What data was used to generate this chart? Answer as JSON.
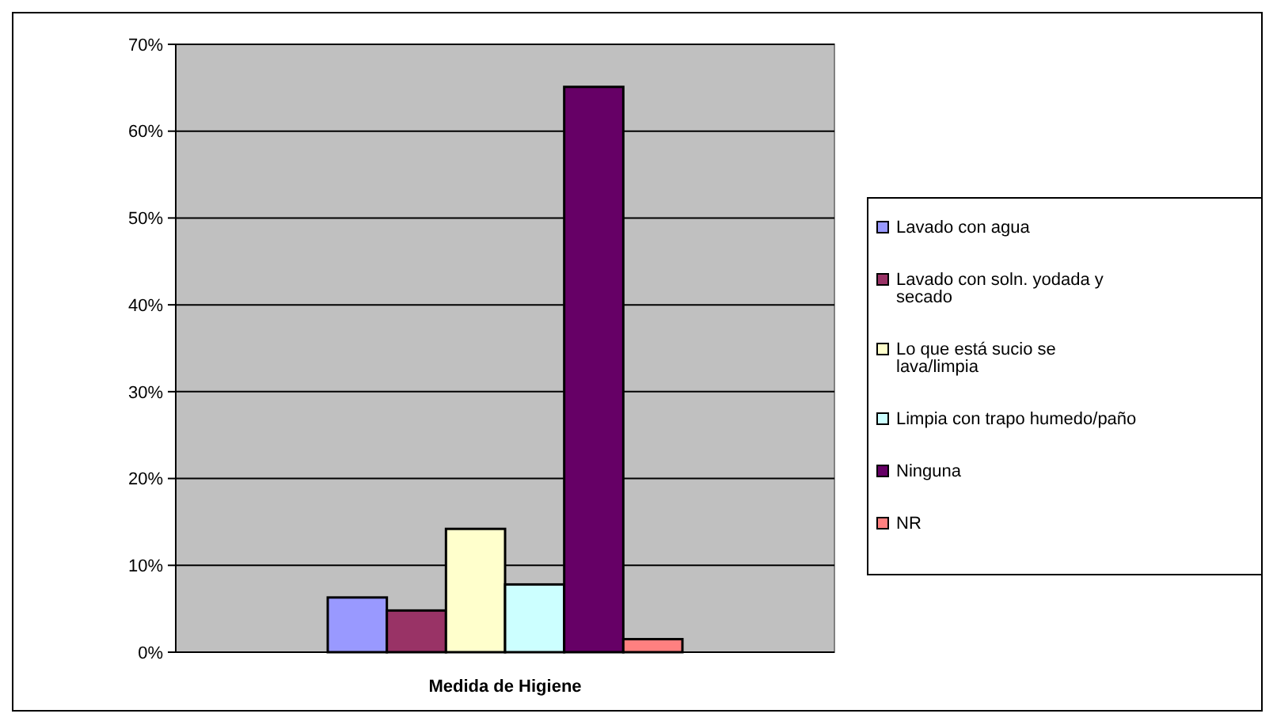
{
  "chart_data": {
    "type": "bar",
    "xlabel": "Medida de Higiene",
    "categories": [
      null
    ],
    "series": [
      {
        "name": "Lavado con agua",
        "color": "#9999ff",
        "values": [
          6.3
        ]
      },
      {
        "name": "Lavado con soln. yodada y secado",
        "color": "#993366",
        "values": [
          4.8
        ]
      },
      {
        "name": "Lo que está sucio se lava/limpia",
        "color": "#ffffcc",
        "values": [
          14.2
        ]
      },
      {
        "name": "Limpia con trapo humedo/paño",
        "color": "#ccffff",
        "values": [
          7.8
        ]
      },
      {
        "name": "Ninguna",
        "color": "#660066",
        "values": [
          65.1
        ]
      },
      {
        "name": "NR",
        "color": "#ff8080",
        "values": [
          1.5
        ]
      }
    ],
    "ylim": [
      0,
      70
    ],
    "yticks": [
      {
        "value": 0,
        "label": "0%"
      },
      {
        "value": 10,
        "label": "10%"
      },
      {
        "value": 20,
        "label": "20%"
      },
      {
        "value": 30,
        "label": "30%"
      },
      {
        "value": 40,
        "label": "40%"
      },
      {
        "value": 50,
        "label": "50%"
      },
      {
        "value": 60,
        "label": "60%"
      },
      {
        "value": 70,
        "label": "70%"
      }
    ],
    "grid": "y",
    "legend": "right"
  }
}
